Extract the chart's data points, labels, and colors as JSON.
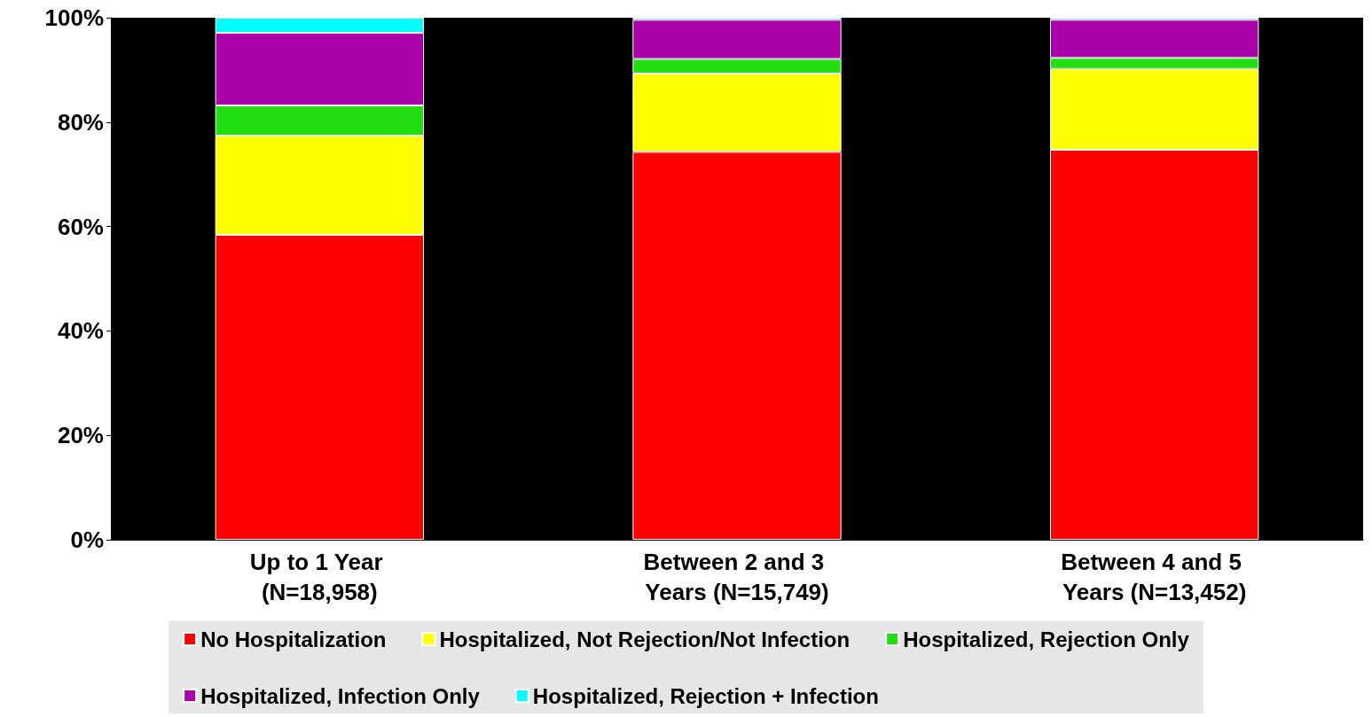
{
  "chart_data": {
    "type": "bar",
    "stacked": true,
    "categories": [
      "Up to 1 Year (N=18,958)",
      "Between 2 and 3 Years (N=15,749)",
      "Between 4 and 5 Years (N=13,452)"
    ],
    "series": [
      {
        "name": "No Hospitalization",
        "color": "#ff0000",
        "values": [
          58.4,
          74.3,
          74.7
        ]
      },
      {
        "name": "Hospitalized, Not Rejection/Not Infection",
        "color": "#ffff00",
        "values": [
          19.0,
          15.0,
          15.5
        ]
      },
      {
        "name": "Hospitalized, Rejection Only",
        "color": "#22dd11",
        "values": [
          5.8,
          2.8,
          2.1
        ]
      },
      {
        "name": "Hospitalized, Infection Only",
        "color": "#aa00aa",
        "values": [
          13.9,
          7.5,
          7.3
        ]
      },
      {
        "name": "Hospitalized, Rejection + Infection",
        "color": "#00ffff",
        "values": [
          2.9,
          0.4,
          0.4
        ]
      }
    ],
    "ylim": [
      0,
      100
    ],
    "yticks": [
      {
        "value": 0,
        "label": "0%"
      },
      {
        "value": 20,
        "label": "20%"
      },
      {
        "value": 40,
        "label": "40%"
      },
      {
        "value": 60,
        "label": "60%"
      },
      {
        "value": 80,
        "label": "80%"
      },
      {
        "value": 100,
        "label": "100%"
      }
    ],
    "grid": false,
    "legend": "bottom"
  }
}
